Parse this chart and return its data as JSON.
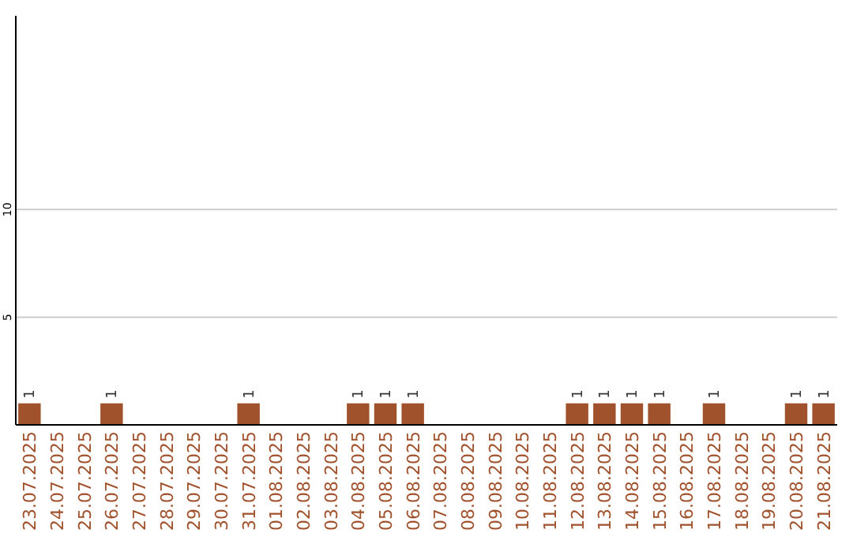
{
  "chart_data": {
    "type": "bar",
    "categories": [
      "23.07.2025",
      "24.07.2025",
      "25.07.2025",
      "26.07.2025",
      "27.07.2025",
      "28.07.2025",
      "29.07.2025",
      "30.07.2025",
      "31.07.2025",
      "01.08.2025",
      "02.08.2025",
      "03.08.2025",
      "04.08.2025",
      "05.08.2025",
      "06.08.2025",
      "07.08.2025",
      "08.08.2025",
      "09.08.2025",
      "10.08.2025",
      "11.08.2025",
      "12.08.2025",
      "13.08.2025",
      "14.08.2025",
      "15.08.2025",
      "16.08.2025",
      "17.08.2025",
      "18.08.2025",
      "19.08.2025",
      "20.08.2025",
      "21.08.2025"
    ],
    "values": [
      1,
      0,
      0,
      1,
      0,
      0,
      0,
      0,
      1,
      0,
      0,
      0,
      1,
      1,
      1,
      0,
      0,
      0,
      0,
      0,
      1,
      1,
      1,
      1,
      0,
      1,
      0,
      0,
      1,
      1
    ],
    "value_labels": [
      "1",
      null,
      null,
      "1",
      null,
      null,
      null,
      null,
      "1",
      null,
      null,
      null,
      "1",
      "1",
      "1",
      null,
      null,
      null,
      null,
      null,
      "1",
      "1",
      "1",
      "1",
      null,
      "1",
      null,
      null,
      "1",
      "1"
    ],
    "color": "#a0522d",
    "ylim": [
      0,
      19
    ],
    "yticks": [
      5,
      10
    ],
    "grid": "y"
  }
}
